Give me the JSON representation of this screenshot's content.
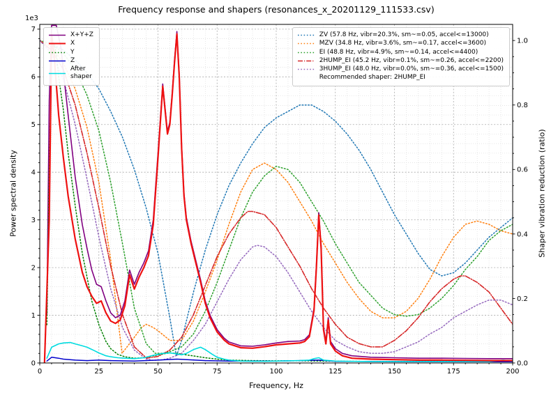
{
  "chart_data": {
    "type": "line",
    "title": "Frequency response and shapers (resonances_x_20201129_111533.csv)",
    "xlabel": "Frequency, Hz",
    "ylabel_left": "Power spectral density",
    "ylabel_right": "Shaper vibration reduction (ratio)",
    "y_left_offset_label": "1e3",
    "xlim": [
      0,
      200
    ],
    "ylim_left": [
      0,
      7100
    ],
    "ylim_right": [
      0,
      1.05
    ],
    "x_ticks": [
      0,
      25,
      50,
      75,
      100,
      125,
      150,
      175,
      200
    ],
    "x_minor_step": 5,
    "y_left_ticks": [
      0,
      1,
      2,
      3,
      4,
      5,
      6,
      7
    ],
    "y_left_tick_scale": 1000,
    "y_left_minor_step": 200,
    "y_right_ticks": [
      "0.0",
      "0.2",
      "0.4",
      "0.6",
      "0.8",
      "1.0"
    ],
    "y_right_minor_step": 0.05,
    "grid": true,
    "recommended_shaper": "2HUMP_EI",
    "legend_psd": {
      "items": [
        {
          "label": "X+Y+Z",
          "series": "X+Y+Z"
        },
        {
          "label": "X",
          "series": "X"
        },
        {
          "label": "Y",
          "series": "Y"
        },
        {
          "label": "Z",
          "series": "Z"
        },
        {
          "label": "After\nshaper",
          "series": "After shaper"
        }
      ]
    },
    "legend_shapers": {
      "items": [
        {
          "label": "ZV (57.8 Hz, vibr=20.3%, sm~=0.05, accel<=13000)",
          "series": "ZV"
        },
        {
          "label": "MZV (34.8 Hz, vibr=3.6%, sm~=0.17, accel<=3600)",
          "series": "MZV"
        },
        {
          "label": "EI (48.8 Hz, vibr=4.9%, sm~=0.14, accel<=4400)",
          "series": "EI"
        },
        {
          "label": "2HUMP_EI (45.2 Hz, vibr=0.1%, sm~=0.26, accel<=2200)",
          "series": "2HUMP_EI"
        },
        {
          "label": "3HUMP_EI (48.0 Hz, vibr=0.0%, sm~=0.36, accel<=1500)",
          "series": "3HUMP_EI"
        }
      ],
      "note": "Recommended shaper: 2HUMP_EI"
    },
    "series": [
      {
        "name": "ZV",
        "axis": "right",
        "color": "#1f77b4",
        "dash": "dotted",
        "width": 1.5,
        "x": [
          0,
          5,
          10,
          15,
          20,
          25,
          30,
          35,
          40,
          45,
          50,
          55,
          57.8,
          60,
          65,
          70,
          75,
          80,
          85,
          90,
          95,
          100,
          105,
          110,
          113,
          115,
          120,
          125,
          130,
          135,
          140,
          145,
          150,
          155,
          160,
          165,
          170,
          175,
          180,
          185,
          190,
          195,
          200
        ],
        "y": [
          1.0,
          0.99,
          0.97,
          0.94,
          0.9,
          0.85,
          0.78,
          0.7,
          0.6,
          0.48,
          0.34,
          0.14,
          0.02,
          0.07,
          0.22,
          0.35,
          0.46,
          0.55,
          0.62,
          0.68,
          0.73,
          0.76,
          0.78,
          0.8,
          0.8,
          0.8,
          0.78,
          0.75,
          0.71,
          0.66,
          0.6,
          0.53,
          0.46,
          0.4,
          0.34,
          0.29,
          0.27,
          0.28,
          0.31,
          0.35,
          0.39,
          0.42,
          0.45
        ]
      },
      {
        "name": "MZV",
        "axis": "right",
        "color": "#ff7f0e",
        "dash": "dotted",
        "width": 1.5,
        "x": [
          0,
          5,
          10,
          15,
          20,
          25,
          30,
          34.8,
          38,
          40,
          43,
          45,
          48,
          50,
          55,
          60,
          65,
          70,
          75,
          80,
          85,
          90,
          95,
          100,
          105,
          110,
          115,
          120,
          125,
          130,
          135,
          140,
          145,
          150,
          155,
          160,
          165,
          170,
          175,
          180,
          185,
          190,
          195,
          200
        ],
        "y": [
          1.0,
          0.98,
          0.93,
          0.85,
          0.73,
          0.56,
          0.32,
          0.03,
          0.06,
          0.08,
          0.11,
          0.12,
          0.11,
          0.1,
          0.07,
          0.07,
          0.13,
          0.22,
          0.32,
          0.43,
          0.53,
          0.6,
          0.62,
          0.6,
          0.56,
          0.5,
          0.44,
          0.37,
          0.31,
          0.25,
          0.2,
          0.16,
          0.14,
          0.14,
          0.16,
          0.2,
          0.26,
          0.33,
          0.39,
          0.43,
          0.44,
          0.43,
          0.41,
          0.4
        ]
      },
      {
        "name": "EI",
        "axis": "right",
        "color": "#2ca02c",
        "dash": "dotted",
        "width": 1.5,
        "x": [
          0,
          5,
          10,
          15,
          20,
          25,
          30,
          35,
          40,
          45,
          48.8,
          52,
          55,
          60,
          65,
          70,
          75,
          80,
          85,
          90,
          95,
          100,
          105,
          110,
          115,
          120,
          125,
          130,
          135,
          140,
          145,
          150,
          155,
          160,
          165,
          170,
          175,
          180,
          185,
          190,
          195,
          200
        ],
        "y": [
          1.0,
          0.99,
          0.96,
          0.91,
          0.83,
          0.72,
          0.56,
          0.37,
          0.17,
          0.06,
          0.03,
          0.03,
          0.035,
          0.05,
          0.09,
          0.16,
          0.25,
          0.35,
          0.45,
          0.53,
          0.58,
          0.61,
          0.6,
          0.56,
          0.5,
          0.44,
          0.37,
          0.31,
          0.25,
          0.21,
          0.17,
          0.15,
          0.145,
          0.15,
          0.17,
          0.2,
          0.24,
          0.29,
          0.33,
          0.38,
          0.41,
          0.43
        ]
      },
      {
        "name": "2HUMP_EI",
        "axis": "right",
        "color": "#d62728",
        "dash": "dashdot",
        "width": 1.6,
        "x": [
          0,
          5,
          10,
          15,
          20,
          25,
          30,
          35,
          40,
          45.2,
          50,
          55,
          60,
          65,
          70,
          75,
          80,
          85,
          88,
          90,
          95,
          100,
          105,
          110,
          115,
          120,
          125,
          130,
          135,
          140,
          145,
          150,
          155,
          160,
          165,
          170,
          175,
          178,
          180,
          185,
          190,
          195,
          200
        ],
        "y": [
          1.0,
          0.97,
          0.91,
          0.8,
          0.65,
          0.48,
          0.3,
          0.15,
          0.05,
          0.015,
          0.02,
          0.04,
          0.08,
          0.15,
          0.24,
          0.33,
          0.4,
          0.45,
          0.47,
          0.47,
          0.46,
          0.42,
          0.36,
          0.3,
          0.23,
          0.17,
          0.12,
          0.08,
          0.06,
          0.05,
          0.05,
          0.07,
          0.1,
          0.14,
          0.19,
          0.23,
          0.26,
          0.27,
          0.27,
          0.25,
          0.22,
          0.17,
          0.12
        ]
      },
      {
        "name": "3HUMP_EI",
        "axis": "right",
        "color": "#9467bd",
        "dash": "dotted",
        "width": 1.5,
        "x": [
          0,
          5,
          10,
          15,
          20,
          25,
          30,
          35,
          40,
          45,
          48,
          52,
          55,
          60,
          65,
          70,
          75,
          80,
          85,
          90,
          92,
          95,
          100,
          105,
          110,
          115,
          120,
          125,
          130,
          135,
          140,
          145,
          150,
          155,
          160,
          165,
          170,
          175,
          180,
          185,
          190,
          195,
          200
        ],
        "y": [
          1.0,
          0.96,
          0.88,
          0.74,
          0.57,
          0.39,
          0.23,
          0.11,
          0.04,
          0.012,
          0.008,
          0.01,
          0.015,
          0.03,
          0.07,
          0.12,
          0.19,
          0.26,
          0.32,
          0.36,
          0.365,
          0.36,
          0.33,
          0.28,
          0.22,
          0.16,
          0.11,
          0.07,
          0.05,
          0.035,
          0.03,
          0.03,
          0.035,
          0.05,
          0.065,
          0.09,
          0.11,
          0.14,
          0.16,
          0.18,
          0.195,
          0.195,
          0.18
        ]
      },
      {
        "name": "X+Y+Z",
        "axis": "left",
        "color": "#800080",
        "dash": "solid",
        "width": 1.6,
        "x": [
          3,
          4,
          5,
          7,
          9,
          10,
          12,
          15,
          18,
          20,
          22,
          24,
          26,
          28,
          30,
          32,
          34,
          36,
          38,
          40,
          42,
          44,
          46,
          48,
          50,
          52,
          53,
          54,
          55,
          56,
          57,
          58,
          59,
          60,
          61,
          62,
          64,
          66,
          68,
          70,
          72,
          75,
          78,
          80,
          85,
          90,
          95,
          100,
          105,
          110,
          112,
          114,
          116,
          117,
          118,
          119,
          120,
          121,
          122,
          123,
          125,
          128,
          132,
          140,
          150,
          160,
          170,
          180,
          190,
          200
        ],
        "y": [
          1000,
          5500,
          7080,
          7080,
          6600,
          6100,
          5200,
          3900,
          2900,
          2400,
          1950,
          1650,
          1600,
          1300,
          1050,
          950,
          1000,
          1300,
          1950,
          1650,
          1900,
          2100,
          2350,
          3000,
          4400,
          5850,
          5350,
          4850,
          5050,
          5650,
          6350,
          6950,
          6050,
          4550,
          3550,
          3050,
          2550,
          2150,
          1750,
          1300,
          1000,
          700,
          520,
          440,
          360,
          350,
          380,
          420,
          450,
          460,
          490,
          590,
          1150,
          2050,
          3150,
          2450,
          750,
          450,
          950,
          450,
          300,
          200,
          150,
          120,
          110,
          100,
          100,
          95,
          90,
          90
        ]
      },
      {
        "name": "Y",
        "axis": "left",
        "color": "#008000",
        "dash": "dotted",
        "width": 1.5,
        "x": [
          3,
          4,
          5,
          6,
          7,
          8,
          10,
          12,
          15,
          18,
          20,
          22,
          25,
          28,
          30,
          33,
          36,
          40,
          44,
          48,
          52,
          55,
          58,
          62,
          66,
          70,
          75,
          80,
          90,
          100,
          110,
          120,
          130,
          150,
          175,
          200
        ],
        "y": [
          800,
          4000,
          6400,
          6700,
          6500,
          6000,
          5300,
          4400,
          3300,
          2300,
          1800,
          1300,
          800,
          450,
          300,
          180,
          130,
          100,
          110,
          150,
          190,
          210,
          200,
          170,
          140,
          110,
          80,
          60,
          50,
          45,
          45,
          40,
          35,
          30,
          30,
          30
        ]
      },
      {
        "name": "Z",
        "axis": "left",
        "color": "#0000cc",
        "dash": "solid",
        "width": 1.5,
        "x": [
          3,
          5,
          8,
          10,
          15,
          20,
          25,
          30,
          40,
          50,
          58,
          70,
          80,
          100,
          110,
          118,
          125,
          140,
          160,
          180,
          200
        ],
        "y": [
          40,
          120,
          100,
          80,
          60,
          50,
          60,
          50,
          40,
          60,
          80,
          50,
          40,
          40,
          50,
          60,
          35,
          30,
          25,
          25,
          25
        ]
      },
      {
        "name": "After shaper",
        "axis": "left",
        "color": "#00dce0",
        "dash": "solid",
        "width": 1.6,
        "x": [
          3,
          5,
          8,
          10,
          13,
          15,
          18,
          20,
          23,
          25,
          28,
          30,
          33,
          36,
          40,
          44,
          48,
          52,
          55,
          58,
          60,
          62,
          65,
          68,
          70,
          73,
          75,
          78,
          80,
          85,
          90,
          95,
          100,
          105,
          110,
          114,
          116,
          118,
          120,
          125,
          130,
          140,
          150,
          160,
          170,
          180,
          190,
          196,
          200
        ],
        "y": [
          100,
          330,
          400,
          420,
          430,
          400,
          360,
          330,
          260,
          210,
          150,
          130,
          110,
          100,
          90,
          110,
          160,
          200,
          210,
          190,
          170,
          200,
          280,
          330,
          280,
          180,
          120,
          80,
          60,
          40,
          35,
          35,
          40,
          45,
          50,
          60,
          90,
          110,
          60,
          40,
          35,
          30,
          30,
          30,
          30,
          30,
          30,
          60,
          40
        ]
      },
      {
        "name": "X",
        "axis": "left",
        "color": "#ee1111",
        "dash": "solid",
        "width": 2.2,
        "x": [
          2,
          4,
          5,
          6,
          8,
          10,
          12,
          15,
          18,
          20,
          22,
          24,
          26,
          28,
          30,
          32,
          34,
          36,
          38,
          40,
          42,
          44,
          46,
          48,
          50,
          52,
          53,
          54,
          55,
          56,
          57,
          58,
          59,
          60,
          61,
          62,
          64,
          66,
          68,
          70,
          72,
          75,
          78,
          80,
          85,
          90,
          95,
          100,
          105,
          110,
          112,
          114,
          116,
          117,
          118,
          119,
          120,
          121,
          122,
          123,
          125,
          128,
          132,
          140,
          150,
          160,
          170,
          180,
          190,
          200
        ],
        "y": [
          0,
          3000,
          6900,
          6500,
          5200,
          4300,
          3500,
          2600,
          1900,
          1600,
          1400,
          1250,
          1300,
          1050,
          880,
          830,
          900,
          1200,
          1850,
          1550,
          1800,
          2000,
          2250,
          2900,
          4300,
          5800,
          5300,
          4800,
          5000,
          5600,
          6300,
          6900,
          6000,
          4500,
          3500,
          3000,
          2500,
          2100,
          1700,
          1250,
          950,
          650,
          480,
          400,
          320,
          310,
          340,
          380,
          400,
          420,
          450,
          550,
          1100,
          2000,
          3100,
          2400,
          700,
          400,
          900,
          400,
          250,
          150,
          100,
          80,
          70,
          60,
          60,
          55,
          50,
          50
        ]
      }
    ]
  }
}
